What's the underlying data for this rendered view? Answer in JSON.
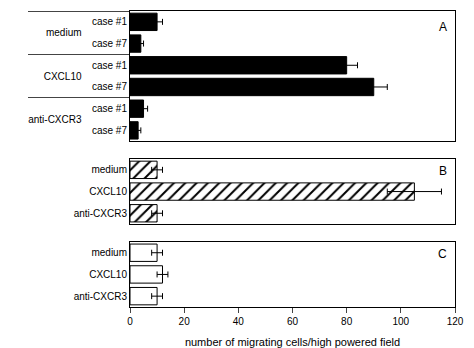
{
  "chart_data": [
    {
      "type": "bar",
      "orientation": "horizontal",
      "categories": [
        "case #1",
        "case #7",
        "case #1",
        "case #7",
        "case #1",
        "case #7"
      ],
      "category_groups": [
        "medium",
        "medium",
        "CXCL10",
        "CXCL10",
        "anti-CXCR3",
        "anti-CXCR3"
      ],
      "values": [
        10,
        4,
        80,
        90,
        5,
        3
      ],
      "errors": [
        2,
        1,
        4,
        5,
        1.5,
        1
      ],
      "color": "#000000",
      "xlim": [
        0,
        120
      ],
      "tick_labels": "y",
      "grid": false,
      "annotations": [
        "A"
      ]
    },
    {
      "type": "bar",
      "orientation": "horizontal",
      "categories": [
        "medium",
        "CXCL10",
        "anti-CXCR3"
      ],
      "values": [
        10,
        105,
        10
      ],
      "errors": [
        2,
        10,
        2
      ],
      "color": "#ffffff",
      "xlim": [
        0,
        120
      ],
      "tick_labels": "y",
      "grid": false,
      "annotations": [
        "B"
      ]
    },
    {
      "type": "bar",
      "orientation": "horizontal",
      "categories": [
        "medium",
        "CXCL10",
        "anti-CXCR3"
      ],
      "values": [
        10,
        12,
        10
      ],
      "errors": [
        2,
        2,
        2
      ],
      "color": "#ffffff",
      "xlim": [
        0,
        120
      ],
      "xticks": [
        0,
        20,
        40,
        60,
        80,
        100,
        120
      ],
      "xlabel": "number of migrating cells/high powered field",
      "grid": false,
      "annotations": [
        "C"
      ]
    }
  ]
}
